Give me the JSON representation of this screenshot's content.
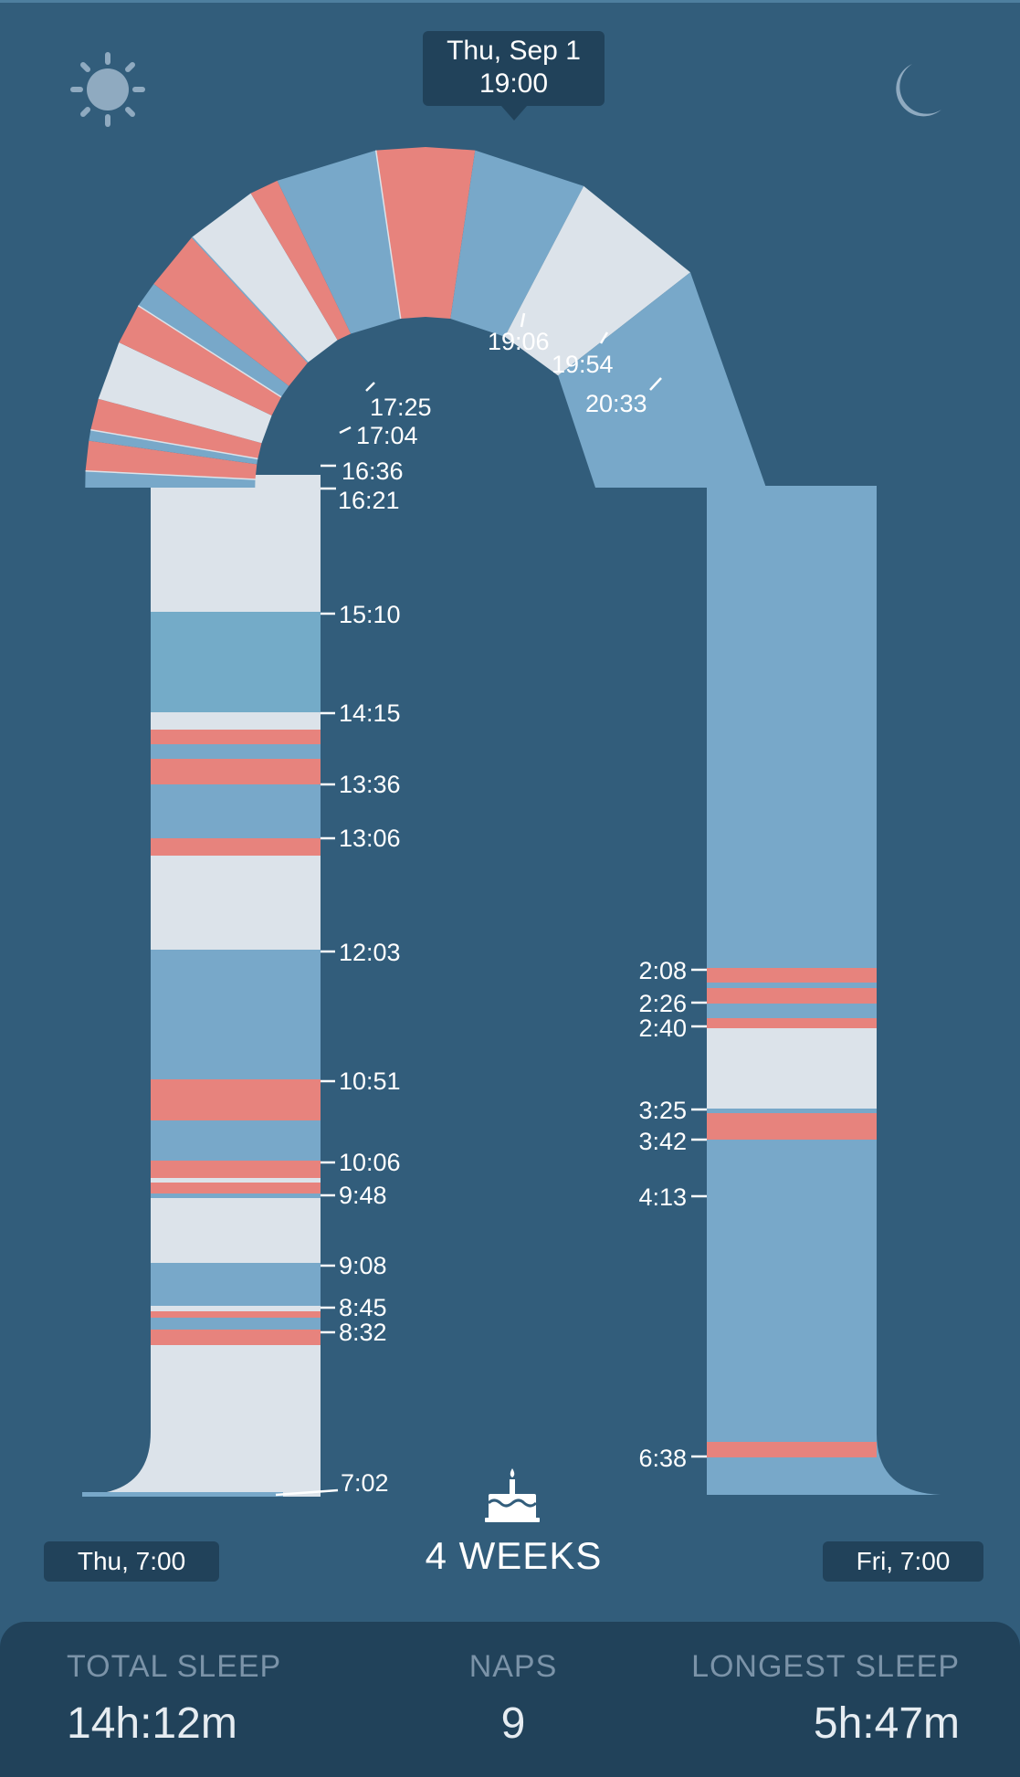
{
  "tooltip": {
    "date": "Thu, Sep 1",
    "time": "19:00"
  },
  "icons": {
    "day": "sun-icon",
    "night": "moon-icon",
    "age": "birthday-cake-icon"
  },
  "colors": {
    "background": "#325d7b",
    "sleep": "#78a8c9",
    "awake": "#dce3ea",
    "feed": "#e7837d",
    "panel": "#21425a"
  },
  "timeline": {
    "start_label": "Thu, 7:00",
    "end_label": "Fri, 7:00",
    "age_label": "4 WEEKS",
    "tick_labels": [
      "7:02",
      "8:32",
      "8:45",
      "9:08",
      "9:48",
      "10:06",
      "10:51",
      "12:03",
      "13:06",
      "13:36",
      "14:15",
      "15:10",
      "16:21",
      "16:36",
      "17:04",
      "17:25",
      "19:06",
      "19:54",
      "20:33",
      "2:08",
      "2:26",
      "2:40",
      "3:25",
      "3:42",
      "4:13",
      "6:38"
    ]
  },
  "stats": {
    "total_sleep_label": "TOTAL SLEEP",
    "total_sleep_value": "14h:12m",
    "naps_label": "NAPS",
    "naps_value": "9",
    "longest_sleep_label": "LONGEST SLEEP",
    "longest_sleep_value": "5h:47m"
  }
}
